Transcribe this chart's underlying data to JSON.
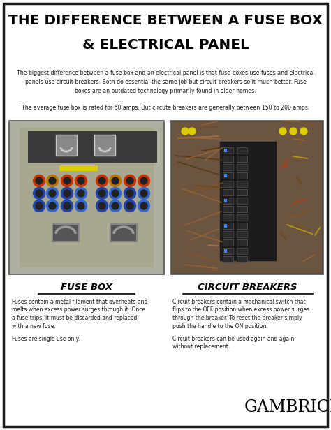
{
  "title_line1": "THE DIFFERENCE BETWEEN A FUSE BOX",
  "title_line2": "& ELECTRICAL PANEL",
  "intro_text": "The biggest difference between a fuse box and an electrical panel is that fuse boxes use fuses and electrical\npanels use circuit breakers. Both do essential the same job but circuit breakers so it much better. Fuse\nboxes are an outdated technology primarily found in older homes.",
  "avg_text": "The average fuse box is rated for 60 amps. But circute breakers are generally between 150 to 200 amps.",
  "left_label": "FUSE BOX",
  "right_label": "CIRCUIT BREAKERS",
  "left_body": "Fuses contain a metal filament that overheats and\nmelts when excess power surges through it. Once\na fuse trips, it must be discarded and replaced\nwith a new fuse.\n\nFuses are single use only.",
  "right_body": "Circuit breakers contain a mechanical switch that\nflips to the OFF position when excess power surges\nthrough the breaker. To reset the breaker simply\npush the handle to the ON position.\n\nCircuit breakers can be used again and again\nwithout replacement.",
  "brand": "GAMBRICK",
  "bg_color": "#ffffff",
  "border_color": "#1a1a1a",
  "title_color": "#000000",
  "text_color": "#1a1a1a",
  "label_color": "#000000"
}
